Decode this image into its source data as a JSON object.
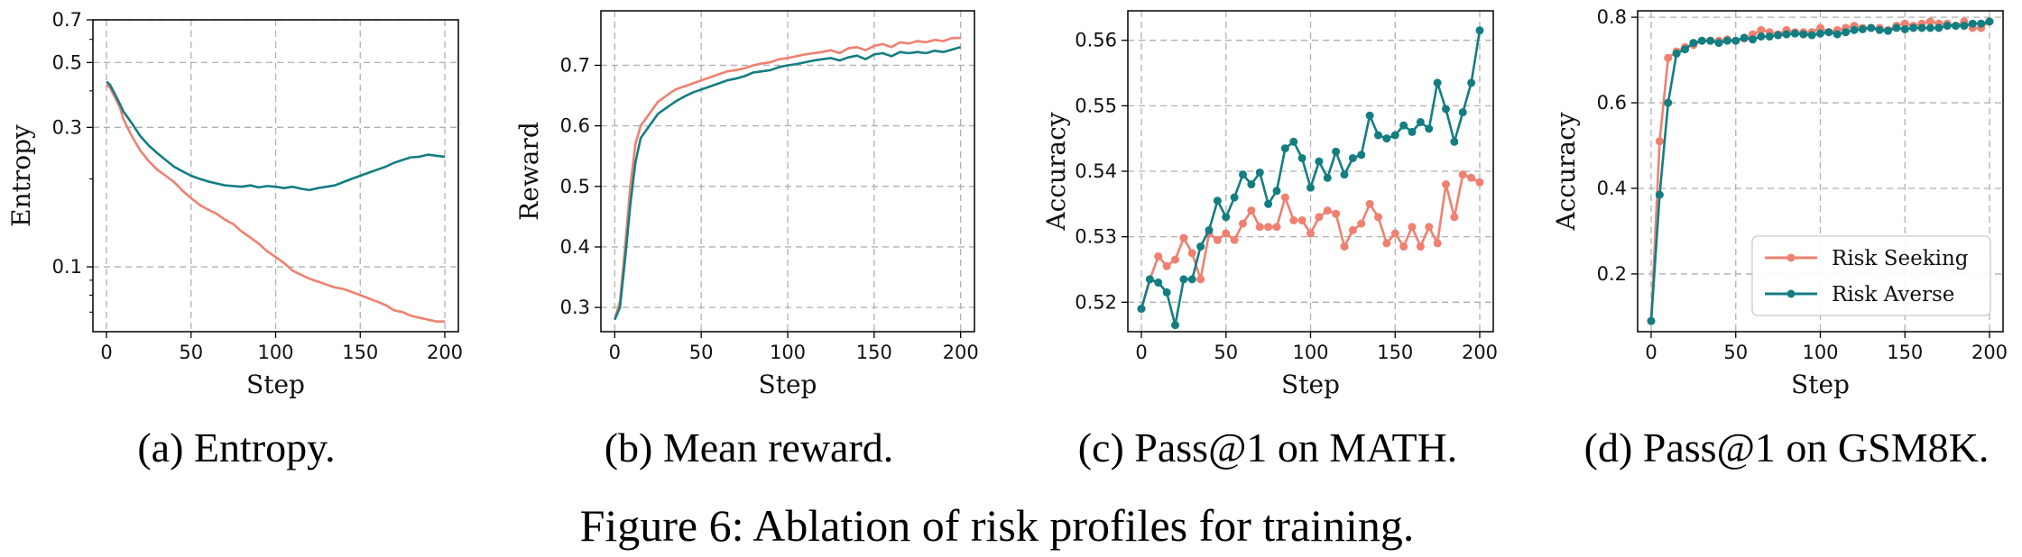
{
  "figure": {
    "title": "Figure 6: Ablation of risk profiles for training.",
    "colors": {
      "risk_seeking": "#f08070",
      "risk_averse": "#137e82"
    },
    "legend": {
      "placement": "lower-right of panel (d)",
      "entries": [
        "Risk Seeking",
        "Risk Averse"
      ]
    }
  },
  "chart_data": [
    {
      "type": "line",
      "caption": "(a) Entropy.",
      "xlabel": "Step",
      "ylabel": "Entropy",
      "yscale": "log",
      "xlim": [
        -8,
        208
      ],
      "ylim": [
        0.06,
        0.7
      ],
      "xticks": [
        0,
        50,
        100,
        150,
        200
      ],
      "xtick_labels": [
        "0",
        "50",
        "100",
        "150",
        "200"
      ],
      "yticks": [
        0.1,
        0.3,
        0.5,
        0.7
      ],
      "ytick_labels": [
        "0.1",
        "0.3",
        "0.5",
        "0.7"
      ],
      "grid": true,
      "series": [
        {
          "name": "Risk Seeking",
          "x": [
            0,
            2,
            5,
            8,
            10,
            15,
            20,
            25,
            30,
            35,
            40,
            45,
            50,
            55,
            60,
            65,
            70,
            75,
            80,
            85,
            90,
            95,
            100,
            105,
            110,
            115,
            120,
            125,
            130,
            135,
            140,
            145,
            150,
            155,
            160,
            165,
            170,
            175,
            180,
            185,
            190,
            195,
            200
          ],
          "y": [
            0.42,
            0.41,
            0.38,
            0.35,
            0.32,
            0.28,
            0.25,
            0.23,
            0.215,
            0.205,
            0.195,
            0.182,
            0.172,
            0.163,
            0.157,
            0.152,
            0.145,
            0.14,
            0.132,
            0.126,
            0.12,
            0.113,
            0.108,
            0.103,
            0.097,
            0.094,
            0.091,
            0.089,
            0.087,
            0.085,
            0.084,
            0.082,
            0.08,
            0.078,
            0.076,
            0.074,
            0.071,
            0.07,
            0.068,
            0.067,
            0.066,
            0.065,
            0.065
          ]
        },
        {
          "name": "Risk Averse",
          "x": [
            0,
            2,
            5,
            8,
            10,
            15,
            20,
            25,
            30,
            35,
            40,
            45,
            50,
            55,
            60,
            65,
            70,
            75,
            80,
            85,
            90,
            95,
            100,
            105,
            110,
            115,
            120,
            125,
            130,
            135,
            140,
            145,
            150,
            155,
            160,
            165,
            170,
            175,
            180,
            185,
            190,
            195,
            200
          ],
          "y": [
            0.43,
            0.42,
            0.39,
            0.36,
            0.34,
            0.31,
            0.28,
            0.26,
            0.245,
            0.232,
            0.22,
            0.212,
            0.205,
            0.2,
            0.196,
            0.193,
            0.19,
            0.189,
            0.188,
            0.19,
            0.187,
            0.189,
            0.188,
            0.186,
            0.188,
            0.185,
            0.183,
            0.186,
            0.188,
            0.19,
            0.195,
            0.2,
            0.205,
            0.21,
            0.215,
            0.22,
            0.227,
            0.232,
            0.237,
            0.238,
            0.242,
            0.24,
            0.238
          ]
        }
      ]
    },
    {
      "type": "line",
      "caption": "(b) Mean reward.",
      "xlabel": "Step",
      "ylabel": "Reward",
      "xlim": [
        -8,
        208
      ],
      "ylim": [
        0.26,
        0.79
      ],
      "xticks": [
        0,
        50,
        100,
        150,
        200
      ],
      "xtick_labels": [
        "0",
        "50",
        "100",
        "150",
        "200"
      ],
      "yticks": [
        0.3,
        0.4,
        0.5,
        0.6,
        0.7
      ],
      "ytick_labels": [
        "0.3",
        "0.4",
        "0.5",
        "0.6",
        "0.7"
      ],
      "grid": true,
      "series": [
        {
          "name": "Risk Seeking",
          "x": [
            0,
            3,
            6,
            9,
            12,
            15,
            20,
            25,
            30,
            35,
            40,
            45,
            50,
            55,
            60,
            65,
            70,
            75,
            80,
            85,
            90,
            95,
            100,
            105,
            110,
            115,
            120,
            125,
            130,
            135,
            140,
            145,
            150,
            155,
            160,
            165,
            170,
            175,
            180,
            185,
            190,
            195,
            200
          ],
          "y": [
            0.28,
            0.31,
            0.4,
            0.5,
            0.57,
            0.6,
            0.62,
            0.64,
            0.65,
            0.66,
            0.665,
            0.67,
            0.675,
            0.68,
            0.685,
            0.69,
            0.692,
            0.695,
            0.7,
            0.703,
            0.705,
            0.71,
            0.712,
            0.715,
            0.718,
            0.72,
            0.722,
            0.725,
            0.72,
            0.728,
            0.73,
            0.725,
            0.732,
            0.735,
            0.73,
            0.738,
            0.736,
            0.74,
            0.738,
            0.742,
            0.74,
            0.745,
            0.745
          ]
        },
        {
          "name": "Risk Averse",
          "x": [
            0,
            3,
            6,
            9,
            12,
            15,
            20,
            25,
            30,
            35,
            40,
            45,
            50,
            55,
            60,
            65,
            70,
            75,
            80,
            85,
            90,
            95,
            100,
            105,
            110,
            115,
            120,
            125,
            130,
            135,
            140,
            145,
            150,
            155,
            160,
            165,
            170,
            175,
            180,
            185,
            190,
            195,
            200
          ],
          "y": [
            0.28,
            0.3,
            0.38,
            0.47,
            0.54,
            0.58,
            0.6,
            0.62,
            0.63,
            0.64,
            0.648,
            0.655,
            0.66,
            0.665,
            0.67,
            0.675,
            0.678,
            0.682,
            0.688,
            0.69,
            0.692,
            0.697,
            0.7,
            0.702,
            0.705,
            0.708,
            0.71,
            0.712,
            0.708,
            0.713,
            0.716,
            0.71,
            0.718,
            0.72,
            0.715,
            0.722,
            0.72,
            0.722,
            0.72,
            0.724,
            0.722,
            0.726,
            0.73
          ]
        }
      ]
    },
    {
      "type": "line",
      "caption": "(c) Pass@1 on MATH.",
      "xlabel": "Step",
      "ylabel": "Accuracy",
      "xlim": [
        -8,
        208
      ],
      "ylim": [
        0.5155,
        0.5645
      ],
      "xticks": [
        0,
        50,
        100,
        150,
        200
      ],
      "xtick_labels": [
        "0",
        "50",
        "100",
        "150",
        "200"
      ],
      "yticks": [
        0.52,
        0.53,
        0.54,
        0.55,
        0.56
      ],
      "ytick_labels": [
        "0.52",
        "0.53",
        "0.54",
        "0.55",
        "0.56"
      ],
      "grid": true,
      "markers": true,
      "series": [
        {
          "name": "Risk Seeking",
          "x": [
            0,
            5,
            10,
            15,
            20,
            25,
            30,
            35,
            40,
            45,
            50,
            55,
            60,
            65,
            70,
            75,
            80,
            85,
            90,
            95,
            100,
            105,
            110,
            115,
            120,
            125,
            130,
            135,
            140,
            145,
            150,
            155,
            160,
            165,
            170,
            175,
            180,
            185,
            190,
            195,
            200
          ],
          "y": [
            0.519,
            0.5235,
            0.527,
            0.5255,
            0.5265,
            0.5298,
            0.5275,
            0.5235,
            0.5305,
            0.5295,
            0.5305,
            0.5295,
            0.532,
            0.534,
            0.5315,
            0.5315,
            0.5315,
            0.536,
            0.5325,
            0.5325,
            0.5305,
            0.533,
            0.534,
            0.5335,
            0.5285,
            0.531,
            0.532,
            0.535,
            0.533,
            0.529,
            0.5305,
            0.5285,
            0.5315,
            0.5285,
            0.5315,
            0.529,
            0.538,
            0.533,
            0.5395,
            0.539,
            0.5383
          ]
        },
        {
          "name": "Risk Averse",
          "x": [
            0,
            5,
            10,
            15,
            20,
            25,
            30,
            35,
            40,
            45,
            50,
            55,
            60,
            65,
            70,
            75,
            80,
            85,
            90,
            95,
            100,
            105,
            110,
            115,
            120,
            125,
            130,
            135,
            140,
            145,
            150,
            155,
            160,
            165,
            170,
            175,
            180,
            185,
            190,
            195,
            200
          ],
          "y": [
            0.519,
            0.5235,
            0.523,
            0.5215,
            0.5165,
            0.5235,
            0.5235,
            0.5285,
            0.531,
            0.5355,
            0.533,
            0.536,
            0.5395,
            0.538,
            0.5398,
            0.535,
            0.537,
            0.5435,
            0.5445,
            0.542,
            0.5375,
            0.5415,
            0.539,
            0.543,
            0.5395,
            0.542,
            0.5425,
            0.5485,
            0.5455,
            0.545,
            0.5455,
            0.547,
            0.546,
            0.5475,
            0.5465,
            0.5535,
            0.5495,
            0.5445,
            0.549,
            0.5535,
            0.5615
          ]
        }
      ]
    },
    {
      "type": "line",
      "caption": "(d) Pass@1 on GSM8K.",
      "xlabel": "Step",
      "ylabel": "Accuracy",
      "xlim": [
        -8,
        208
      ],
      "ylim": [
        0.065,
        0.815
      ],
      "xticks": [
        0,
        50,
        100,
        150,
        200
      ],
      "xtick_labels": [
        "0",
        "50",
        "100",
        "150",
        "200"
      ],
      "yticks": [
        0.2,
        0.4,
        0.6,
        0.8
      ],
      "ytick_labels": [
        "0.2",
        "0.4",
        "0.6",
        "0.8"
      ],
      "grid": true,
      "markers": true,
      "series": [
        {
          "name": "Risk Seeking",
          "x": [
            0,
            5,
            10,
            15,
            20,
            25,
            30,
            35,
            40,
            45,
            50,
            55,
            60,
            65,
            70,
            75,
            80,
            85,
            90,
            95,
            100,
            105,
            110,
            115,
            120,
            125,
            130,
            135,
            140,
            145,
            150,
            155,
            160,
            165,
            170,
            175,
            180,
            185,
            190,
            195,
            200
          ],
          "y": [
            0.09,
            0.51,
            0.705,
            0.72,
            0.73,
            0.735,
            0.745,
            0.745,
            0.745,
            0.748,
            0.745,
            0.75,
            0.76,
            0.77,
            0.765,
            0.76,
            0.77,
            0.765,
            0.765,
            0.765,
            0.775,
            0.765,
            0.77,
            0.775,
            0.78,
            0.775,
            0.775,
            0.775,
            0.77,
            0.78,
            0.785,
            0.78,
            0.785,
            0.79,
            0.785,
            0.785,
            0.78,
            0.79,
            0.775,
            0.775,
            0.79
          ]
        },
        {
          "name": "Risk Averse",
          "x": [
            0,
            5,
            10,
            15,
            20,
            25,
            30,
            35,
            40,
            45,
            50,
            55,
            60,
            65,
            70,
            75,
            80,
            85,
            90,
            95,
            100,
            105,
            110,
            115,
            120,
            125,
            130,
            135,
            140,
            145,
            150,
            155,
            160,
            165,
            170,
            175,
            180,
            185,
            190,
            195,
            200
          ],
          "y": [
            0.09,
            0.385,
            0.6,
            0.715,
            0.725,
            0.74,
            0.745,
            0.745,
            0.74,
            0.745,
            0.745,
            0.752,
            0.748,
            0.755,
            0.755,
            0.758,
            0.76,
            0.762,
            0.76,
            0.758,
            0.762,
            0.765,
            0.76,
            0.765,
            0.77,
            0.772,
            0.775,
            0.77,
            0.768,
            0.775,
            0.772,
            0.775,
            0.775,
            0.775,
            0.775,
            0.78,
            0.78,
            0.78,
            0.785,
            0.785,
            0.79
          ]
        }
      ]
    }
  ]
}
